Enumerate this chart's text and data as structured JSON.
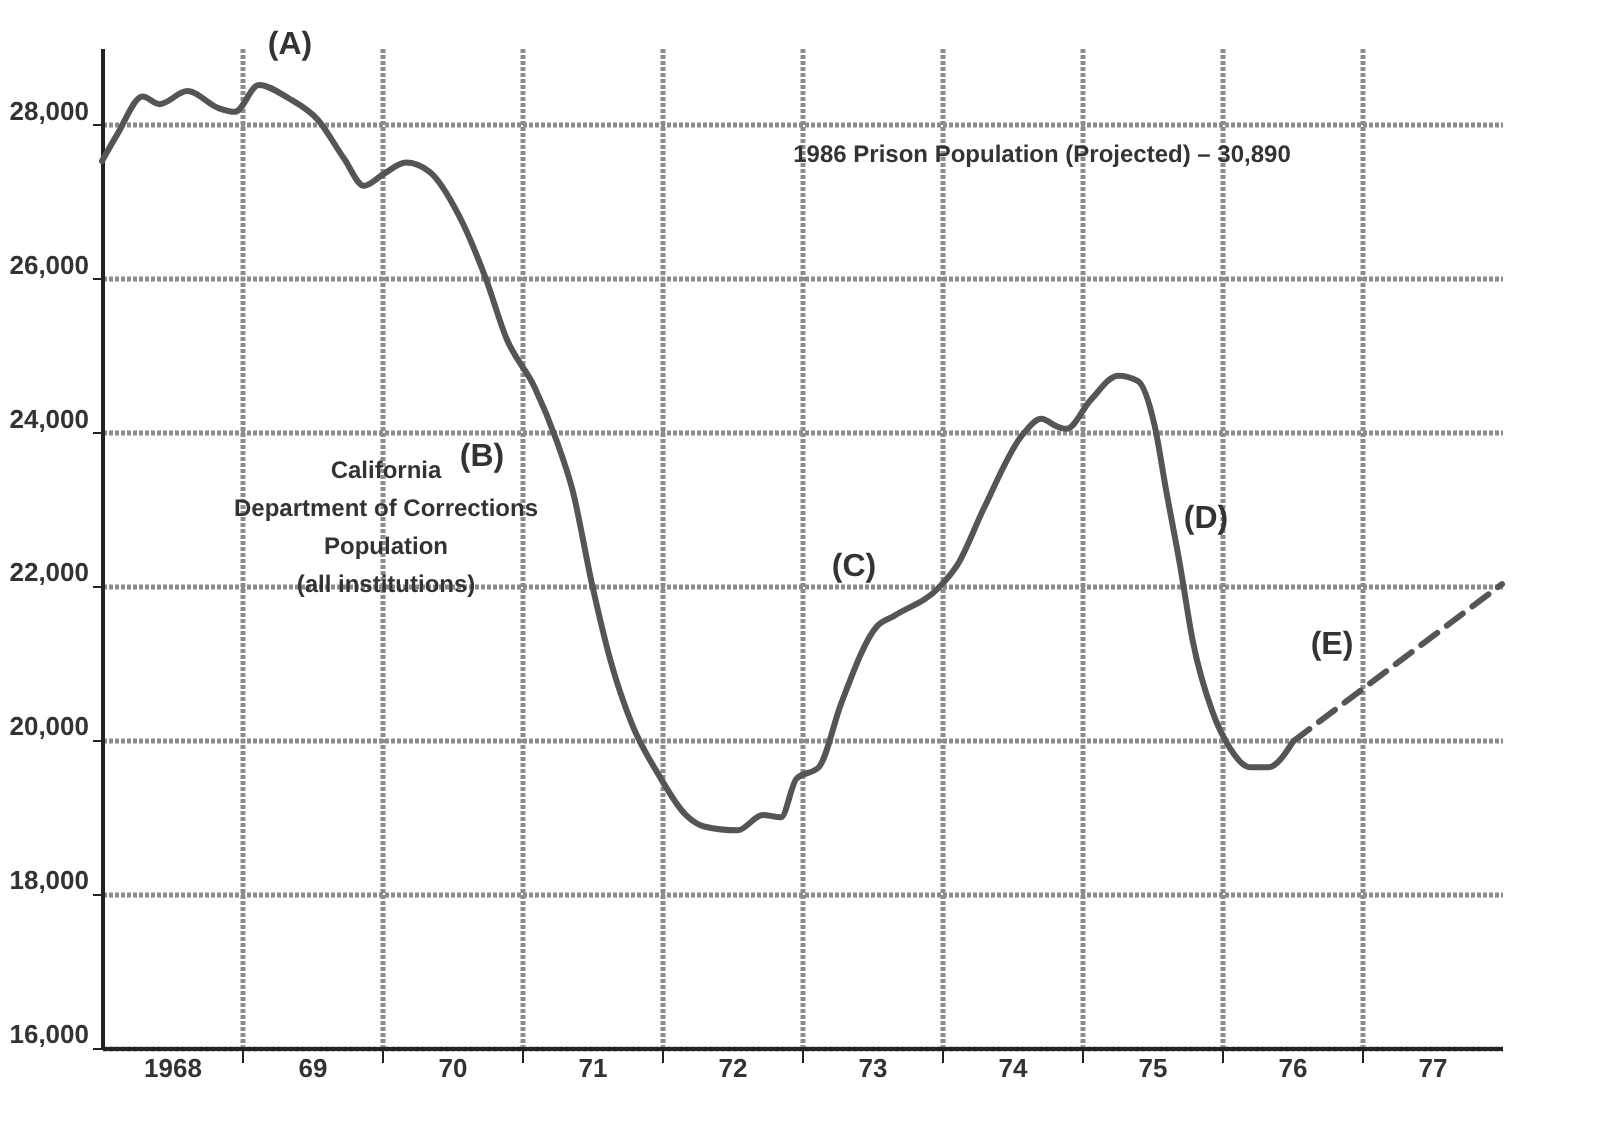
{
  "chart_data": {
    "type": "line",
    "xlim": [
      1967.5,
      1977.5
    ],
    "ylim": [
      16000,
      29000
    ],
    "xticks": [
      {
        "value": 1968,
        "label": "1968"
      },
      {
        "value": 1968.5,
        "label": null
      },
      {
        "value": 1969,
        "label": "69"
      },
      {
        "value": 1969.5,
        "label": null
      },
      {
        "value": 1970,
        "label": "70"
      },
      {
        "value": 1970.5,
        "label": null
      },
      {
        "value": 1971,
        "label": "71"
      },
      {
        "value": 1971.5,
        "label": null
      },
      {
        "value": 1972,
        "label": "72"
      },
      {
        "value": 1972.5,
        "label": null
      },
      {
        "value": 1973,
        "label": "73"
      },
      {
        "value": 1973.5,
        "label": null
      },
      {
        "value": 1974,
        "label": "74"
      },
      {
        "value": 1974.5,
        "label": null
      },
      {
        "value": 1975,
        "label": "75"
      },
      {
        "value": 1975.5,
        "label": null
      },
      {
        "value": 1976,
        "label": "76"
      },
      {
        "value": 1976.5,
        "label": null
      },
      {
        "value": 1977,
        "label": "77"
      }
    ],
    "yticks": [
      {
        "value": 16000,
        "label": "16,000"
      },
      {
        "value": 18000,
        "label": "18,000"
      },
      {
        "value": 20000,
        "label": "20,000"
      },
      {
        "value": 22000,
        "label": "22,000"
      },
      {
        "value": 24000,
        "label": "24,000"
      },
      {
        "value": 26000,
        "label": "26,000"
      },
      {
        "value": 28000,
        "label": "28,000"
      }
    ],
    "grid": true,
    "marker": "none",
    "series": [
      {
        "color": "#555555",
        "line_style": "solid",
        "x": [
          1967.5,
          1967.61,
          1967.79,
          1967.91,
          1968.11,
          1968.33,
          1968.45,
          1968.62,
          1968.83,
          1969.04,
          1969.23,
          1969.37,
          1969.51,
          1969.67,
          1969.84,
          1970.05,
          1970.24,
          1970.39,
          1970.59,
          1970.75,
          1970.86,
          1971.0,
          1971.13,
          1971.29,
          1971.47,
          1971.67,
          1971.8,
          1972.04,
          1972.22,
          1972.35,
          1972.46,
          1972.62,
          1972.78,
          1973.03,
          1973.16,
          1973.48,
          1973.61,
          1973.8,
          1974.07,
          1974.21,
          1974.32,
          1974.39,
          1974.56,
          1974.76,
          1974.9,
          1975.02,
          1975.1,
          1975.2,
          1975.29,
          1975.43,
          1975.56,
          1975.7,
          1975.83,
          1976.01
        ],
        "values": [
          27530,
          27880,
          28370,
          28270,
          28440,
          28220,
          28170,
          28520,
          28350,
          28070,
          27560,
          27210,
          27360,
          27510,
          27390,
          26820,
          26010,
          25220,
          24590,
          23880,
          23260,
          22030,
          21050,
          20190,
          19570,
          19030,
          18880,
          18830,
          19030,
          19000,
          19500,
          19650,
          20480,
          21470,
          21620,
          21990,
          22280,
          23020,
          23960,
          24180,
          24080,
          24050,
          24420,
          24740,
          24670,
          24080,
          23260,
          22280,
          21300,
          20380,
          19890,
          19650,
          19650,
          19990
        ]
      },
      {
        "color": "#555555",
        "line_style": "dashed",
        "x": [
          1976.01,
          1977.5
        ],
        "values": [
          19990,
          22030
        ]
      }
    ],
    "annotations": [
      "(A)",
      "(B)",
      "(C)",
      "(D)",
      "(E)",
      "1986 Prison Population (Projected) – 30,890",
      "California\nDepartment of Corrections\nPopulation\n(all institutions)"
    ]
  }
}
